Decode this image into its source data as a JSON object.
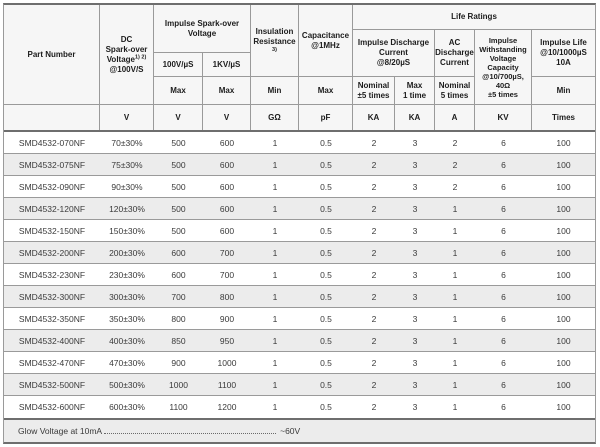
{
  "table": {
    "header": {
      "part_number": "Part Number",
      "dc_spark_over": {
        "top": "DC\nSpark-over",
        "mid": "Voltage",
        "sup": "1) 2)",
        "bottom": "@100V/S"
      },
      "impulse_spark_over": {
        "title": "Impulse Spark-over\nVoltage",
        "sub1": "100V/µS",
        "sub2": "1KV/µS",
        "limit1": "Max",
        "limit2": "Max"
      },
      "insulation_resistance": {
        "title": "Insulation\nResistance",
        "sup": "3)",
        "limit": "Min"
      },
      "capacitance": {
        "title": "Capacitance\n@1MHz",
        "limit": "Max"
      },
      "life_ratings": {
        "title": "Life Ratings",
        "impulse_discharge": {
          "title": "Impulse Discharge\nCurrent\n@8/20µS",
          "sub1": "Nominal\n±5 times",
          "sub2": "Max\n1 time"
        },
        "ac_discharge": {
          "title": "AC\nDischarge\nCurrent",
          "sub": "Nominal\n5 times"
        },
        "impulse_withstanding": {
          "title": "Impulse\nWithstanding\nVoltage\nCapacity\n@10/700µS,\n40Ω\n±5 times"
        },
        "impulse_life": {
          "title": "Impulse Life\n@10/1000µS\n10A",
          "sub": "Min"
        }
      },
      "units": [
        "",
        "V",
        "V",
        "V",
        "GΩ",
        "pF",
        "KA",
        "KA",
        "A",
        "KV",
        "Times"
      ]
    },
    "rows": [
      [
        "SMD4532-070NF",
        "70±30%",
        "500",
        "600",
        "1",
        "0.5",
        "2",
        "3",
        "2",
        "6",
        "100"
      ],
      [
        "SMD4532-075NF",
        "75±30%",
        "500",
        "600",
        "1",
        "0.5",
        "2",
        "3",
        "2",
        "6",
        "100"
      ],
      [
        "SMD4532-090NF",
        "90±30%",
        "500",
        "600",
        "1",
        "0.5",
        "2",
        "3",
        "2",
        "6",
        "100"
      ],
      [
        "SMD4532-120NF",
        "120±30%",
        "500",
        "600",
        "1",
        "0.5",
        "2",
        "3",
        "1",
        "6",
        "100"
      ],
      [
        "SMD4532-150NF",
        "150±30%",
        "500",
        "600",
        "1",
        "0.5",
        "2",
        "3",
        "1",
        "6",
        "100"
      ],
      [
        "SMD4532-200NF",
        "200±30%",
        "600",
        "700",
        "1",
        "0.5",
        "2",
        "3",
        "1",
        "6",
        "100"
      ],
      [
        "SMD4532-230NF",
        "230±30%",
        "600",
        "700",
        "1",
        "0.5",
        "2",
        "3",
        "1",
        "6",
        "100"
      ],
      [
        "SMD4532-300NF",
        "300±30%",
        "700",
        "800",
        "1",
        "0.5",
        "2",
        "3",
        "1",
        "6",
        "100"
      ],
      [
        "SMD4532-350NF",
        "350±30%",
        "800",
        "900",
        "1",
        "0.5",
        "2",
        "3",
        "1",
        "6",
        "100"
      ],
      [
        "SMD4532-400NF",
        "400±30%",
        "850",
        "950",
        "1",
        "0.5",
        "2",
        "3",
        "1",
        "6",
        "100"
      ],
      [
        "SMD4532-470NF",
        "470±30%",
        "900",
        "1000",
        "1",
        "0.5",
        "2",
        "3",
        "1",
        "6",
        "100"
      ],
      [
        "SMD4532-500NF",
        "500±30%",
        "1000",
        "1100",
        "1",
        "0.5",
        "2",
        "3",
        "1",
        "6",
        "100"
      ],
      [
        "SMD4532-600NF",
        "600±30%",
        "1100",
        "1200",
        "1",
        "0.5",
        "2",
        "3",
        "1",
        "6",
        "100"
      ]
    ],
    "footer": {
      "label": "Glow Voltage at 10mA",
      "value": "~60V"
    }
  }
}
